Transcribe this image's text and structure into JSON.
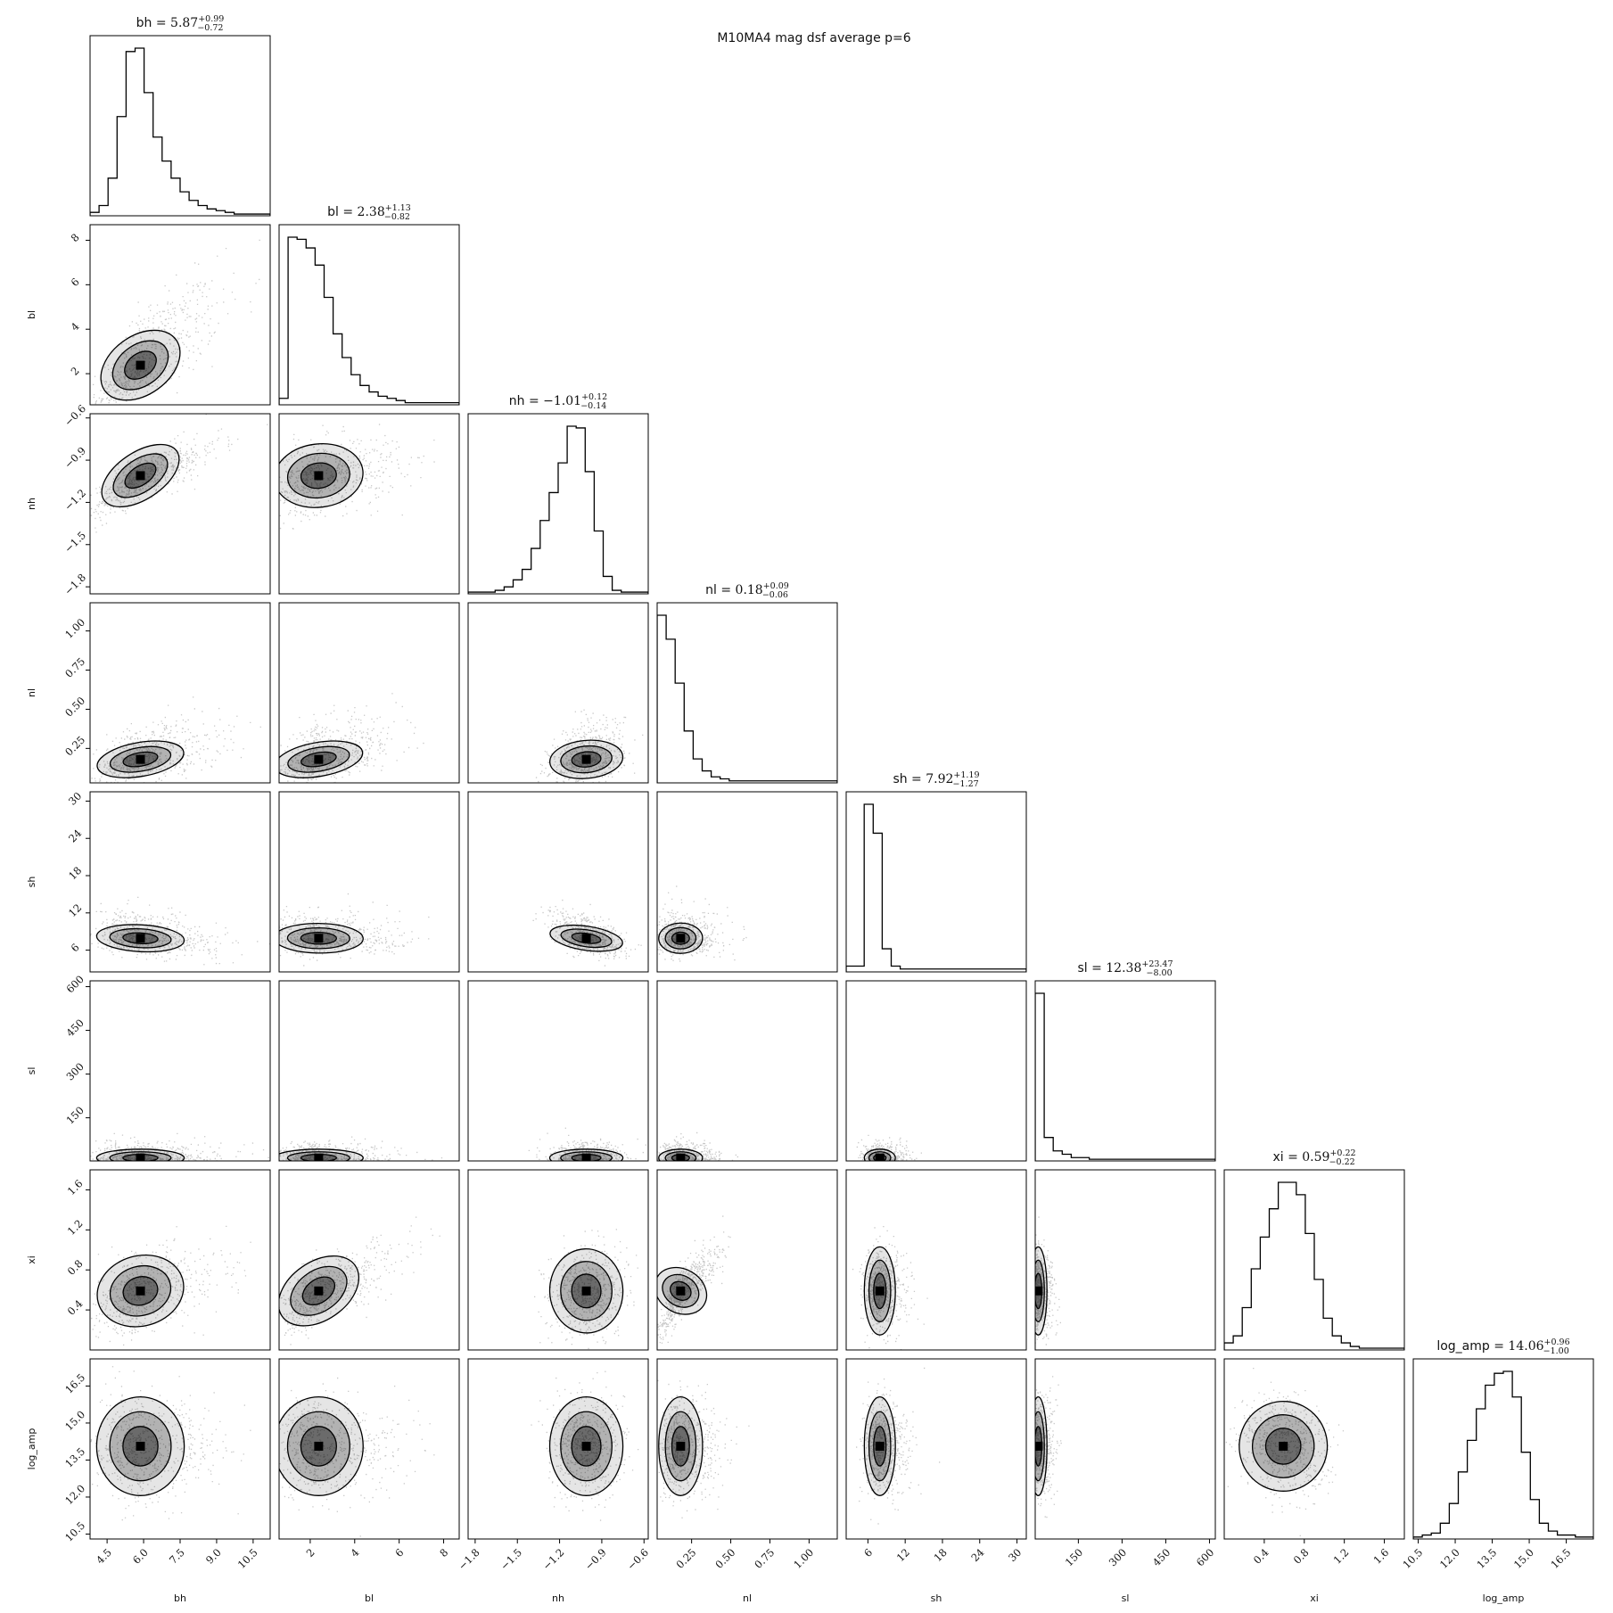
{
  "chart_data": {
    "type": "corner",
    "title": "M10MA4 mag dsf average p=6",
    "params": [
      {
        "key": "bh",
        "label": "bh",
        "median": "5.87",
        "plus": "+0.99",
        "minus": "−0.72",
        "center": 5.87,
        "sigma": 0.9,
        "range": [
          3.8,
          11.2
        ],
        "ticks": [
          4.5,
          6.0,
          7.5,
          9.0,
          10.5
        ],
        "tick_labels": [
          "4.5",
          "6.0",
          "7.5",
          "9.0",
          "10.5"
        ]
      },
      {
        "key": "bl",
        "label": "bl",
        "median": "2.38",
        "plus": "+1.13",
        "minus": "−0.82",
        "center": 2.38,
        "sigma": 1.0,
        "range": [
          0.6,
          8.7
        ],
        "ticks": [
          2,
          4,
          6,
          8
        ],
        "tick_labels": [
          "2",
          "4",
          "6",
          "8"
        ]
      },
      {
        "key": "nh",
        "label": "nh",
        "median": "−1.01",
        "plus": "+0.12",
        "minus": "−0.14",
        "center": -1.01,
        "sigma": 0.13,
        "range": [
          -1.85,
          -0.57
        ],
        "ticks": [
          -1.8,
          -1.5,
          -1.2,
          -0.9,
          -0.6
        ],
        "tick_labels": [
          "−1.8",
          "−1.5",
          "−1.2",
          "−0.9",
          "−0.6"
        ]
      },
      {
        "key": "nl",
        "label": "nl",
        "median": "0.18",
        "plus": "+0.09",
        "minus": "−0.06",
        "center": 0.18,
        "sigma": 0.07,
        "range": [
          0.03,
          1.18
        ],
        "ticks": [
          0.25,
          0.5,
          0.75,
          1.0
        ],
        "tick_labels": [
          "0.25",
          "0.50",
          "0.75",
          "1.00"
        ]
      },
      {
        "key": "sh",
        "label": "sh",
        "median": "7.92",
        "plus": "+1.19",
        "minus": "−1.27",
        "center": 7.92,
        "sigma": 1.25,
        "range": [
          2.5,
          31.5
        ],
        "ticks": [
          6,
          12,
          18,
          24,
          30
        ],
        "tick_labels": [
          "6",
          "12",
          "18",
          "24",
          "30"
        ]
      },
      {
        "key": "sl",
        "label": "sl",
        "median": "12.38",
        "plus": "+23.47",
        "minus": "−8.00",
        "center": 12.38,
        "sigma": 15,
        "range": [
          2,
          620
        ],
        "ticks": [
          150,
          300,
          450,
          600
        ],
        "tick_labels": [
          "150",
          "300",
          "450",
          "600"
        ]
      },
      {
        "key": "xi",
        "label": "xi",
        "median": "0.59",
        "plus": "+0.22",
        "minus": "−0.22",
        "center": 0.59,
        "sigma": 0.22,
        "range": [
          0.0,
          1.8
        ],
        "ticks": [
          0.4,
          0.8,
          1.2,
          1.6
        ],
        "tick_labels": [
          "0.4",
          "0.8",
          "1.2",
          "1.6"
        ]
      },
      {
        "key": "log_amp",
        "label": "log_amp",
        "median": "14.06",
        "plus": "+0.96",
        "minus": "−1.00",
        "center": 14.06,
        "sigma": 1.0,
        "range": [
          10.3,
          17.6
        ],
        "ticks": [
          10.5,
          12.0,
          13.5,
          15.0,
          16.5
        ],
        "tick_labels": [
          "10.5",
          "12.0",
          "13.5",
          "15.0",
          "16.5"
        ]
      }
    ],
    "histograms": [
      [
        2,
        6,
        22,
        58,
        96,
        98,
        72,
        46,
        32,
        22,
        14,
        9,
        6,
        4,
        3,
        2,
        1,
        1,
        1,
        1
      ],
      [
        3,
        78,
        77,
        73,
        65,
        50,
        33,
        22,
        14,
        9,
        6,
        4,
        3,
        2,
        1,
        1,
        1,
        1,
        1,
        1
      ],
      [
        1,
        1,
        1,
        2,
        4,
        8,
        14,
        26,
        42,
        58,
        75,
        96,
        95,
        70,
        36,
        10,
        2,
        1,
        1,
        1
      ],
      [
        84,
        72,
        50,
        26,
        12,
        6,
        3,
        2,
        1,
        1,
        1,
        1,
        1,
        1,
        1,
        1,
        1,
        1,
        1,
        1
      ],
      [
        2,
        2,
        58,
        48,
        8,
        2,
        1,
        1,
        1,
        1,
        1,
        1,
        1,
        1,
        1,
        1,
        1,
        1,
        1,
        1
      ],
      [
        100,
        14,
        6,
        4,
        2,
        2,
        1,
        1,
        1,
        1,
        1,
        1,
        1,
        1,
        1,
        1,
        1,
        1,
        1,
        1
      ],
      [
        4,
        8,
        24,
        46,
        64,
        80,
        95,
        95,
        88,
        66,
        40,
        18,
        8,
        4,
        2,
        1,
        1,
        1,
        1,
        1
      ],
      [
        1,
        2,
        3,
        8,
        18,
        34,
        50,
        66,
        78,
        84,
        85,
        72,
        44,
        20,
        8,
        4,
        2,
        2,
        1,
        1
      ]
    ],
    "correlations": [
      [
        1.0,
        0.75,
        0.8,
        0.5,
        -0.3,
        0.0,
        0.45,
        0.0
      ],
      [
        0.75,
        1.0,
        0.3,
        0.5,
        -0.1,
        0.0,
        0.75,
        0.0
      ],
      [
        0.8,
        0.3,
        1.0,
        0.3,
        -0.5,
        0.0,
        0.1,
        0.0
      ],
      [
        0.5,
        0.5,
        0.3,
        1.0,
        0.05,
        0.0,
        0.85,
        0.0
      ],
      [
        -0.3,
        -0.1,
        -0.5,
        0.05,
        1.0,
        0.0,
        0.0,
        0.0
      ],
      [
        0.0,
        0.0,
        0.0,
        0.0,
        0.0,
        1.0,
        0.0,
        0.0
      ],
      [
        0.45,
        0.75,
        0.1,
        0.85,
        0.0,
        0.0,
        1.0,
        -0.2
      ],
      [
        0.0,
        0.0,
        0.0,
        0.0,
        0.0,
        0.0,
        -0.2,
        1.0
      ]
    ]
  }
}
